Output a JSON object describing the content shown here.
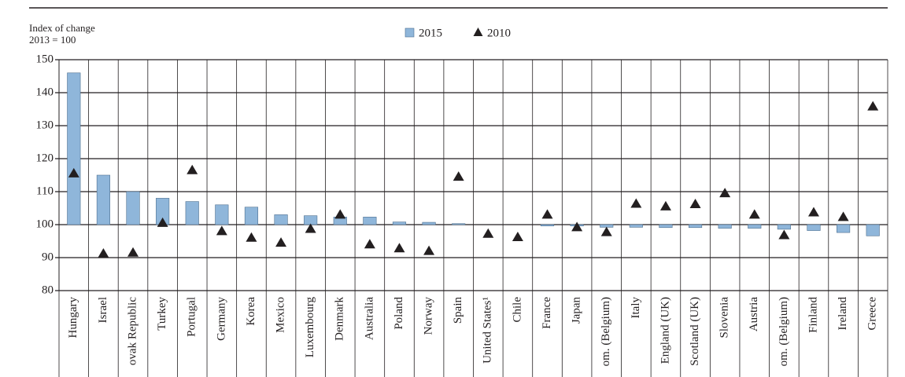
{
  "chart_data": {
    "type": "bar",
    "y_axis_label": "Index of change",
    "y_axis_sublabel": "2013 = 100",
    "categories": [
      "Hungary",
      "Israel",
      "ovak Republic",
      "Turkey",
      "Portugal",
      "Germany",
      "Korea",
      "Mexico",
      "Luxembourg",
      "Denmark",
      "Australia",
      "Poland",
      "Norway",
      "Spain",
      "United States¹",
      "Chile",
      "France",
      "Japan",
      "om. (Belgium)",
      "Italy",
      "England (UK)",
      "Scotland (UK)",
      "Slovenia",
      "Austria",
      "om. (Belgium)",
      "Finland",
      "Ireland",
      "Greece"
    ],
    "baseline": 100,
    "series": [
      {
        "name": "2015",
        "type": "bar",
        "color": "#8fb6da",
        "values": [
          146,
          115,
          110,
          108,
          107,
          106,
          105.3,
          103,
          102.7,
          102.3,
          102.3,
          100.8,
          100.7,
          100.3,
          100,
          100,
          99.6,
          99.6,
          99.2,
          99.2,
          99.1,
          99.1,
          98.9,
          98.9,
          98.6,
          98.2,
          97.6,
          96.6
        ]
      },
      {
        "name": "2010",
        "type": "marker",
        "color": "#231f20",
        "values": [
          115.5,
          91.2,
          91.5,
          100.5,
          116.5,
          98,
          96,
          94.5,
          98.7,
          103,
          94,
          92.8,
          92,
          114.5,
          97.2,
          96.2,
          103,
          99.2,
          97.7,
          106.3,
          105.5,
          106.2,
          109.5,
          103,
          96.8,
          103.7,
          102.3,
          135.8
        ]
      }
    ],
    "ylim": [
      80,
      150
    ],
    "yticks": [
      80,
      90,
      100,
      110,
      120,
      130,
      140,
      150
    ],
    "grid": true,
    "legend": "top-center"
  }
}
